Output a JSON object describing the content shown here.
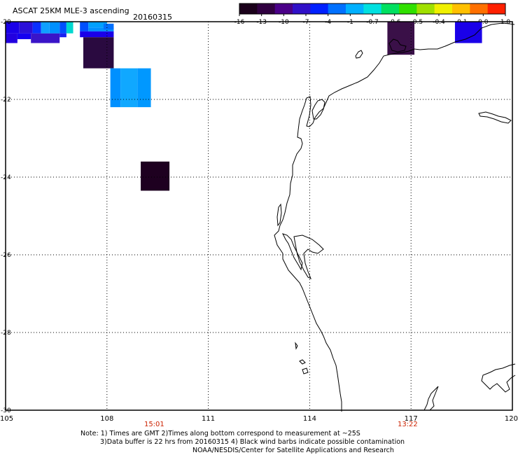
{
  "header": {
    "title": "ASCAT 25KM MLE-3 ascending",
    "date": "20160315"
  },
  "colorbar": {
    "tick_labels": [
      "-16",
      "-13",
      "-10",
      "-7",
      "-4",
      "-1",
      "-0.7",
      "-0.6",
      "-0.5",
      "-0.4",
      "-0.1",
      "0.0",
      "1.0"
    ],
    "colors": [
      "#1a001a",
      "#300040",
      "#4a0088",
      "#3010c8",
      "#0020ff",
      "#0070ff",
      "#00b0ff",
      "#00e0e0",
      "#00e060",
      "#30e000",
      "#a0e000",
      "#f0f000",
      "#ffc000",
      "#ff7000",
      "#ff2000"
    ]
  },
  "map": {
    "lon_range": [
      105,
      120
    ],
    "lat_range": [
      -30,
      -20
    ],
    "x_tick_labels": [
      "105",
      "108",
      "111",
      "114",
      "117",
      "120"
    ],
    "y_tick_labels": [
      "-20",
      "-22",
      "-24",
      "-26",
      "-28",
      "-30"
    ],
    "pass_times": [
      {
        "label": "15:01",
        "lon": 109.4
      },
      {
        "label": "13:22",
        "lon": 116.9
      }
    ],
    "data_cells": [
      {
        "lon0": 105.0,
        "lat0": -20.0,
        "lon1": 105.4,
        "lat1": -20.3,
        "color": "#1a00e8"
      },
      {
        "lon0": 105.4,
        "lat0": -20.0,
        "lon1": 105.8,
        "lat1": -20.3,
        "color": "#2a10d8"
      },
      {
        "lon0": 105.0,
        "lat0": -20.3,
        "lon1": 105.35,
        "lat1": -20.55,
        "color": "#2200e0"
      },
      {
        "lon0": 105.35,
        "lat0": -20.3,
        "lon1": 105.75,
        "lat1": -20.45,
        "color": "#1400f0"
      },
      {
        "lon0": 105.75,
        "lat0": -20.3,
        "lon1": 106.6,
        "lat1": -20.55,
        "color": "#3a14c8"
      },
      {
        "lon0": 105.8,
        "lat0": -20.0,
        "lon1": 106.05,
        "lat1": -20.3,
        "color": "#0a30ff"
      },
      {
        "lon0": 106.05,
        "lat0": -20.0,
        "lon1": 106.3,
        "lat1": -20.3,
        "color": "#10a0ff"
      },
      {
        "lon0": 106.3,
        "lat0": -20.0,
        "lon1": 106.6,
        "lat1": -20.3,
        "color": "#0090ff"
      },
      {
        "lon0": 106.6,
        "lat0": -20.0,
        "lon1": 106.8,
        "lat1": -20.3,
        "color": "#0050ff"
      },
      {
        "lon0": 106.8,
        "lat0": -20.0,
        "lon1": 107.0,
        "lat1": -20.3,
        "color": "#00d8d0"
      },
      {
        "lon0": 106.6,
        "lat0": -20.3,
        "lon1": 106.8,
        "lat1": -20.4,
        "color": "#1a20f0"
      },
      {
        "lon0": 107.2,
        "lat0": -20.0,
        "lon1": 107.45,
        "lat1": -20.25,
        "color": "#0050ff"
      },
      {
        "lon0": 107.45,
        "lat0": -20.0,
        "lon1": 108.0,
        "lat1": -20.15,
        "color": "#00a0ff"
      },
      {
        "lon0": 107.45,
        "lat0": -20.15,
        "lon1": 108.2,
        "lat1": -20.25,
        "color": "#0090ff"
      },
      {
        "lon0": 107.2,
        "lat0": -20.25,
        "lon1": 108.2,
        "lat1": -20.4,
        "color": "#1a00e8"
      },
      {
        "lon0": 107.9,
        "lat0": -20.05,
        "lon1": 108.2,
        "lat1": -20.2,
        "color": "#0070ff"
      },
      {
        "lon0": 107.3,
        "lat0": -20.4,
        "lon1": 108.2,
        "lat1": -21.2,
        "color": "#2a0a40"
      },
      {
        "lon0": 108.1,
        "lat0": -21.2,
        "lon1": 108.4,
        "lat1": -22.2,
        "color": "#0090ff"
      },
      {
        "lon0": 108.4,
        "lat0": -21.2,
        "lon1": 108.9,
        "lat1": -22.2,
        "color": "#10a8ff"
      },
      {
        "lon0": 108.9,
        "lat0": -21.2,
        "lon1": 109.3,
        "lat1": -22.2,
        "color": "#0098ff"
      },
      {
        "lon0": 109.0,
        "lat0": -23.6,
        "lon1": 109.85,
        "lat1": -24.35,
        "color": "#1e0020"
      },
      {
        "lon0": 116.3,
        "lat0": -20.0,
        "lon1": 117.1,
        "lat1": -20.85,
        "color": "#3a1048"
      },
      {
        "lon0": 118.3,
        "lat0": -20.0,
        "lon1": 119.1,
        "lat1": -20.55,
        "color": "#1a00e8"
      }
    ]
  },
  "notes": {
    "line1": "Note: 1) Times are GMT 2)Times along bottom correspond to measurement at ~25S",
    "line2": "3)Data buffer is 22 hrs from 20160315 4) Black wind barbs indicate possible contamination",
    "line3": "NOAA/NESDIS/Center for Satellite Applications and Research"
  }
}
